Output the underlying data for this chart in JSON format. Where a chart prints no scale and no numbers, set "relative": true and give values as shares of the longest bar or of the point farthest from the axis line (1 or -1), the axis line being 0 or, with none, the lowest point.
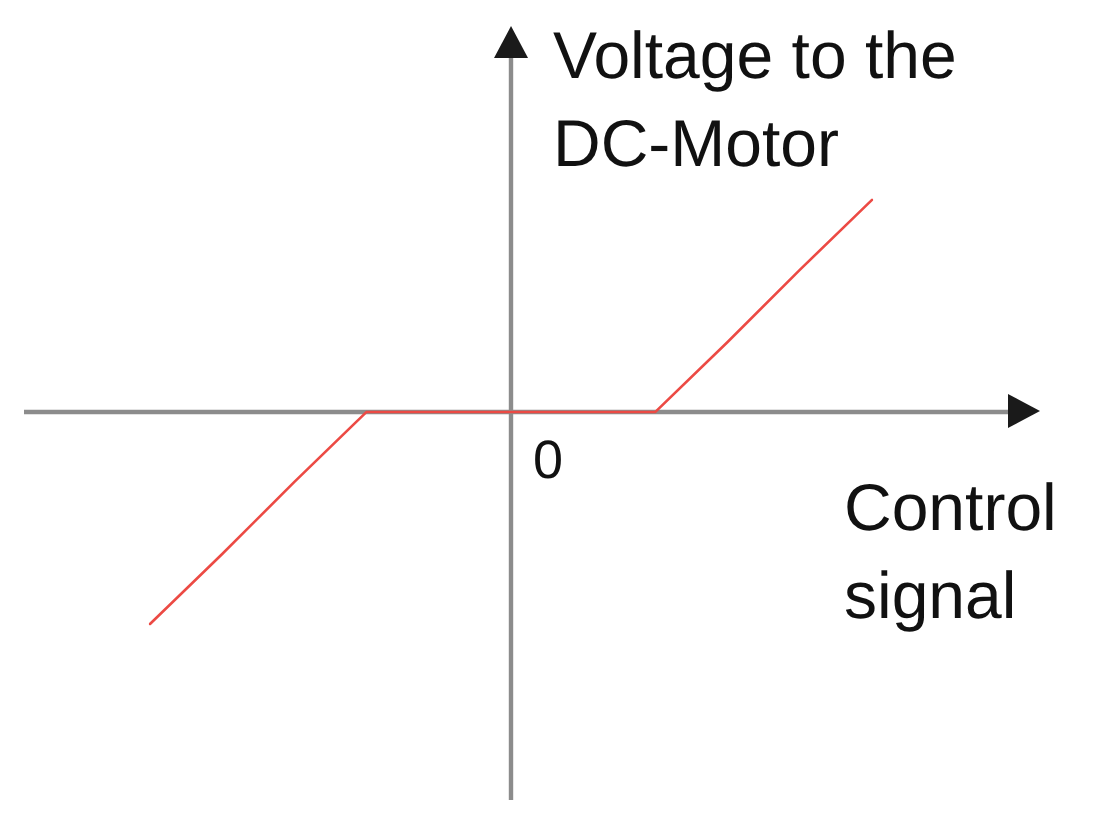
{
  "chart_data": {
    "type": "line",
    "xlabel": "Control signal",
    "ylabel": "Voltage to the DC-Motor",
    "annotations": [
      "0"
    ],
    "categories": [
      null,
      null,
      null,
      null,
      null,
      null,
      null,
      null,
      null,
      null,
      null
    ],
    "series": [
      {
        "color": "#ec4a44",
        "values": [
          -1,
          -0.67,
          -0.33,
          0,
          0,
          0,
          0,
          0,
          0.33,
          0.67,
          1
        ]
      }
    ],
    "relative": true,
    "grid": false,
    "legend": false,
    "marker": "none",
    "line_style": "solid"
  }
}
